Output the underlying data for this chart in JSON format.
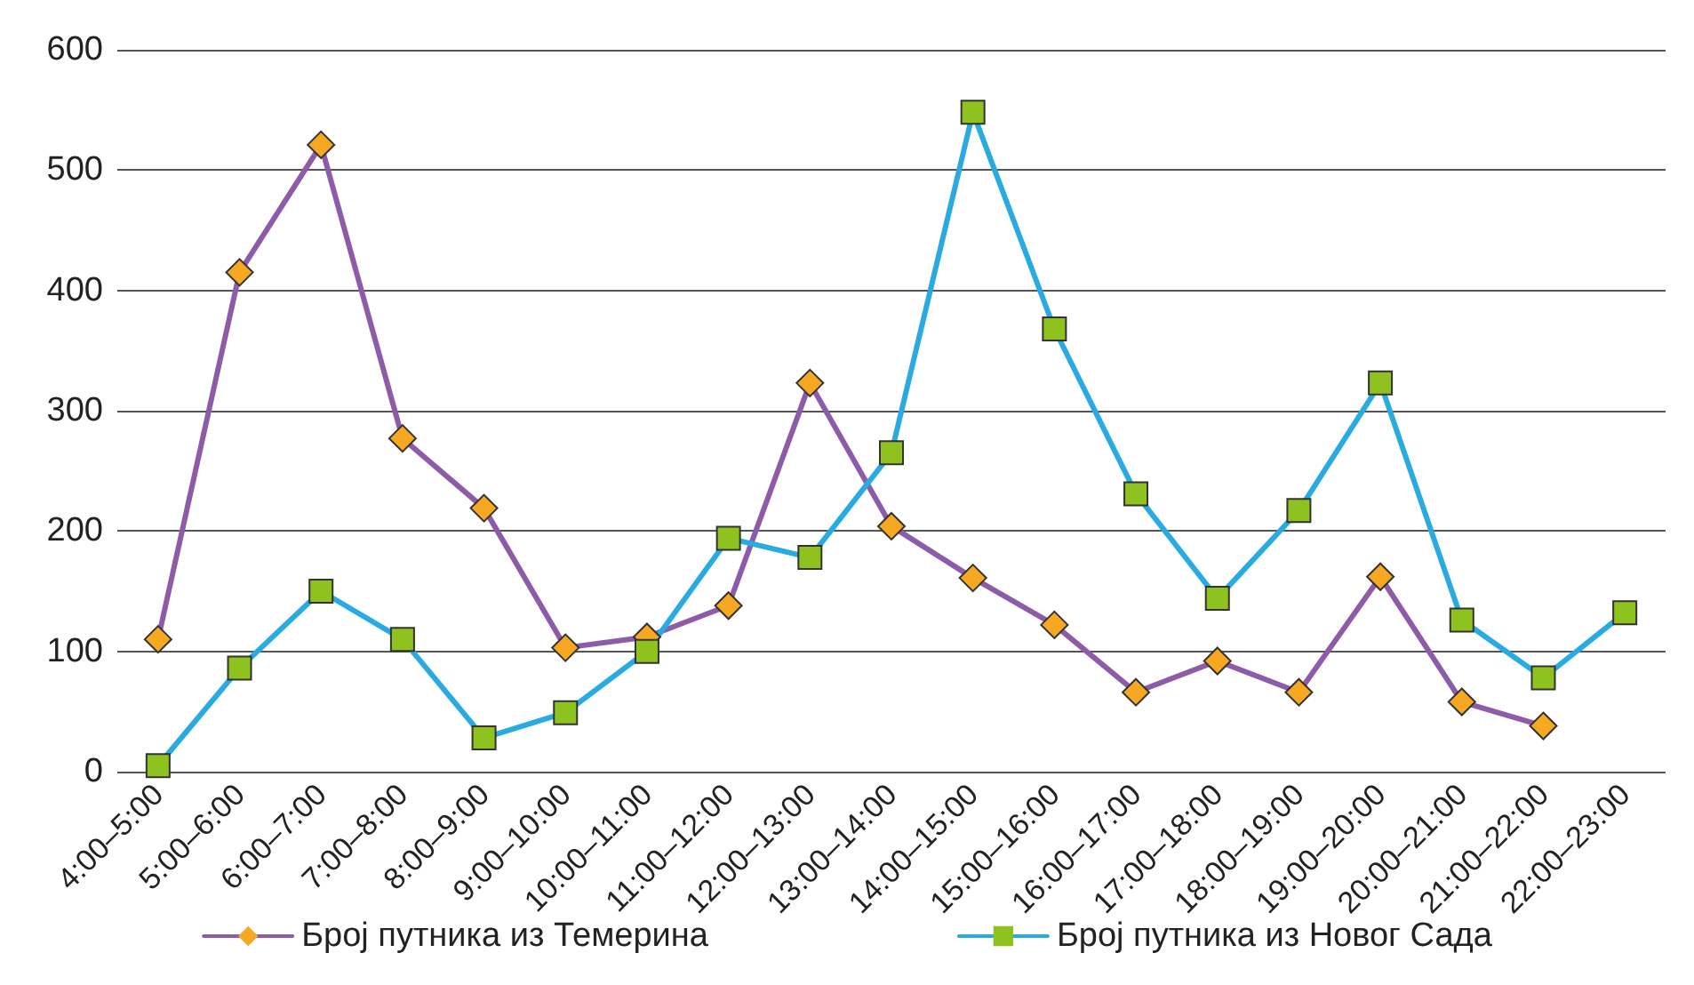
{
  "chart_data": {
    "type": "line",
    "categories": [
      "4:00–5:00",
      "5:00–6:00",
      "6:00–7:00",
      "7:00–8:00",
      "8:00–9:00",
      "9:00–10:00",
      "10:00–11:00",
      "11:00–12:00",
      "12:00–13:00",
      "13:00–14:00",
      "14:00–15:00",
      "15:00–16:00",
      "16:00–17:00",
      "17:00–18:00",
      "18:00–19:00",
      "19:00–20:00",
      "20:00–21:00",
      "21:00–22:00",
      "22:00–23:00"
    ],
    "series": [
      {
        "name": "Број путника из Темерина",
        "color": "#8e5ba8",
        "marker": "diamond",
        "colors": [
          "#f7a823",
          "#f7a823",
          "#f7a823",
          "#f7a823",
          "#f7a823",
          "#f7a823",
          "#f7a823",
          "#f7a823",
          "#f7a823",
          "#f7a823",
          "#f7a823",
          "#f7a823",
          "#f7a823",
          "#f7a823",
          "#f7a823",
          "#f7a823",
          "#f7a823",
          "#f7a823",
          "#f7a823"
        ],
        "values": [
          110,
          415,
          521,
          277,
          219,
          103,
          112,
          138,
          323,
          204,
          161,
          122,
          66,
          92,
          66,
          162,
          58,
          38,
          null
        ]
      },
      {
        "name": "Број путника из Новог Сада",
        "color": "#29abe2",
        "marker": "square",
        "colors": [
          "#8dc21f",
          "#8dc21f",
          "#8dc21f",
          "#8dc21f",
          "#8dc21f",
          "#8dc21f",
          "#8dc21f",
          "#8dc21f",
          "#8dc21f",
          "#8dc21f",
          "#8dc21f",
          "#8dc21f",
          "#8dc21f",
          "#8dc21f",
          "#8dc21f",
          "#8dc21f",
          "#8dc21f",
          "#8dc21f",
          "#8dc21f"
        ],
        "values": [
          5,
          86,
          150,
          110,
          28,
          49,
          100,
          194,
          178,
          265,
          548,
          368,
          231,
          144,
          217,
          323,
          126,
          78,
          132
        ]
      }
    ],
    "ylim": [
      0,
      600
    ],
    "yticks": [
      0,
      100,
      200,
      300,
      400,
      500,
      600
    ],
    "grid": "y",
    "legend": "bottom",
    "line_style": "solid"
  }
}
